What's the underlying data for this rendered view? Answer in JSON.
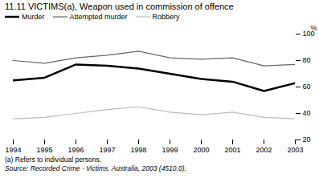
{
  "chart_data": {
    "type": "line",
    "title": "11.11   VICTIMS(a), Weapon used in commission of offence",
    "x": [
      1994,
      1995,
      1996,
      1997,
      1998,
      1999,
      2000,
      2001,
      2002,
      2003
    ],
    "series": [
      {
        "name": "Murder",
        "color": "#000000",
        "values": [
          65,
          67,
          77,
          76,
          74,
          70,
          66,
          64,
          57,
          63
        ]
      },
      {
        "name": "Attempted murder",
        "color": "#666666",
        "values": [
          80,
          78,
          82,
          84,
          87,
          82,
          81,
          82,
          76,
          77
        ]
      },
      {
        "name": "Robbery",
        "color": "#bbbbbb",
        "values": [
          36,
          37,
          40,
          43,
          45,
          41,
          39,
          41,
          37,
          36
        ]
      }
    ],
    "xlim": [
      1994,
      2003
    ],
    "xticks": [
      1994,
      1995,
      1996,
      1997,
      1998,
      1999,
      2000,
      2001,
      2002,
      2003
    ],
    "ylim": [
      20,
      100
    ],
    "yticks": [
      20,
      40,
      60,
      80,
      100
    ],
    "ylabel": "%",
    "legend": "upper left",
    "footnotes": [
      "(a) Refers to individual persons.",
      "Source:  Recorded Crime - Victims, Australia, 2003 (4510.0)."
    ]
  }
}
